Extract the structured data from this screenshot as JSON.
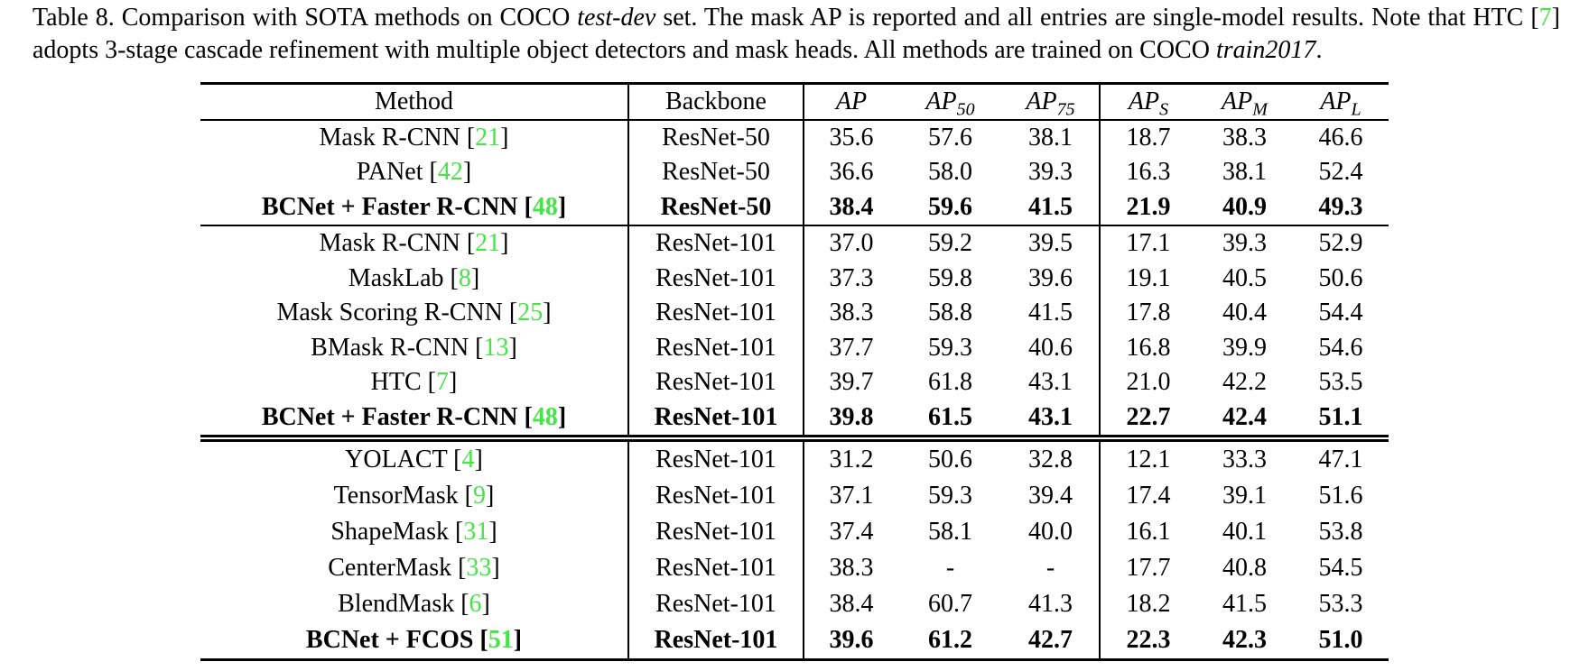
{
  "colors": {
    "citation_green": "#46e546",
    "text": "#000000",
    "background": "#ffffff"
  },
  "caption": {
    "segments": [
      {
        "text": "Table 8. Comparison with SOTA methods on COCO ",
        "style": "normal"
      },
      {
        "text": "test-dev",
        "style": "italic"
      },
      {
        "text": " set.  The mask AP is reported and all entries are single-model results. Note that HTC [",
        "style": "normal"
      },
      {
        "text": "7",
        "style": "cite"
      },
      {
        "text": "] adopts 3-stage cascade refinement with multiple object detectors and mask heads. All methods are trained on COCO ",
        "style": "normal"
      },
      {
        "text": "train2017",
        "style": "italic"
      },
      {
        "text": ".",
        "style": "normal"
      }
    ]
  },
  "table": {
    "columns": [
      {
        "label": "Method",
        "math": false
      },
      {
        "label": "Backbone",
        "math": false
      },
      {
        "label": "AP",
        "sub": "",
        "math": true
      },
      {
        "label": "AP",
        "sub": "50",
        "math": true
      },
      {
        "label": "AP",
        "sub": "75",
        "math": true
      },
      {
        "label": "AP",
        "sub": "S",
        "math": true
      },
      {
        "label": "AP",
        "sub": "M",
        "math": true
      },
      {
        "label": "AP",
        "sub": "L",
        "math": true
      }
    ],
    "groups": [
      {
        "separator": "none",
        "rows": [
          {
            "method": "Mask R-CNN",
            "cite": "21",
            "bold": false,
            "backbone": "ResNet-50",
            "values": [
              "35.6",
              "57.6",
              "38.1",
              "18.7",
              "38.3",
              "46.6"
            ],
            "bold_values": [
              0,
              0,
              0,
              0,
              0,
              0
            ]
          },
          {
            "method": "PANet",
            "cite": "42",
            "bold": false,
            "backbone": "ResNet-50",
            "values": [
              "36.6",
              "58.0",
              "39.3",
              "16.3",
              "38.1",
              "52.4"
            ],
            "bold_values": [
              0,
              0,
              0,
              0,
              0,
              1
            ]
          },
          {
            "method": "BCNet + Faster R-CNN",
            "cite": "48",
            "bold": true,
            "backbone": "ResNet-50",
            "values": [
              "38.4",
              "59.6",
              "41.5",
              "21.9",
              "40.9",
              "49.3"
            ],
            "bold_values": [
              1,
              1,
              1,
              1,
              1,
              0
            ]
          }
        ]
      },
      {
        "separator": "single",
        "rows": [
          {
            "method": "Mask R-CNN",
            "cite": "21",
            "bold": false,
            "backbone": "ResNet-101",
            "values": [
              "37.0",
              "59.2",
              "39.5",
              "17.1",
              "39.3",
              "52.9"
            ],
            "bold_values": [
              0,
              0,
              0,
              0,
              0,
              0
            ]
          },
          {
            "method": "MaskLab",
            "cite": "8",
            "bold": false,
            "backbone": "ResNet-101",
            "values": [
              "37.3",
              "59.8",
              "39.6",
              "19.1",
              "40.5",
              "50.6"
            ],
            "bold_values": [
              0,
              0,
              0,
              0,
              0,
              0
            ]
          },
          {
            "method": "Mask Scoring R-CNN",
            "cite": "25",
            "bold": false,
            "backbone": "ResNet-101",
            "values": [
              "38.3",
              "58.8",
              "41.5",
              "17.8",
              "40.4",
              "54.4"
            ],
            "bold_values": [
              0,
              0,
              0,
              0,
              0,
              0
            ]
          },
          {
            "method": "BMask R-CNN",
            "cite": "13",
            "bold": false,
            "backbone": "ResNet-101",
            "values": [
              "37.7",
              "59.3",
              "40.6",
              "16.8",
              "39.9",
              "54.6"
            ],
            "bold_values": [
              0,
              0,
              0,
              0,
              0,
              1
            ]
          },
          {
            "method": "HTC",
            "cite": "7",
            "bold": false,
            "backbone": "ResNet-101",
            "values": [
              "39.7",
              "61.8",
              "43.1",
              "21.0",
              "42.2",
              "53.5"
            ],
            "bold_values": [
              0,
              1,
              0,
              0,
              0,
              0
            ]
          },
          {
            "method": "BCNet + Faster R-CNN",
            "cite": "48",
            "bold": true,
            "backbone": "ResNet-101",
            "values": [
              "39.8",
              "61.5",
              "43.1",
              "22.7",
              "42.4",
              "51.1"
            ],
            "bold_values": [
              1,
              0,
              1,
              1,
              1,
              0
            ]
          }
        ]
      },
      {
        "separator": "double",
        "rows": [
          {
            "method": "YOLACT",
            "cite": "4",
            "bold": false,
            "backbone": "ResNet-101",
            "values": [
              "31.2",
              "50.6",
              "32.8",
              "12.1",
              "33.3",
              "47.1"
            ],
            "bold_values": [
              0,
              0,
              0,
              0,
              0,
              0
            ]
          },
          {
            "method": "TensorMask",
            "cite": "9",
            "bold": false,
            "backbone": "ResNet-101",
            "values": [
              "37.1",
              "59.3",
              "39.4",
              "17.4",
              "39.1",
              "51.6"
            ],
            "bold_values": [
              0,
              0,
              0,
              0,
              0,
              0
            ]
          },
          {
            "method": "ShapeMask",
            "cite": "31",
            "bold": false,
            "backbone": "ResNet-101",
            "values": [
              "37.4",
              "58.1",
              "40.0",
              "16.1",
              "40.1",
              "53.8"
            ],
            "bold_values": [
              0,
              0,
              0,
              0,
              0,
              0
            ]
          },
          {
            "method": "CenterMask",
            "cite": "33",
            "bold": false,
            "backbone": "ResNet-101",
            "values": [
              "38.3",
              "-",
              "-",
              "17.7",
              "40.8",
              "54.5"
            ],
            "bold_values": [
              0,
              0,
              0,
              0,
              0,
              1
            ]
          },
          {
            "method": "BlendMask",
            "cite": "6",
            "bold": false,
            "backbone": "ResNet-101",
            "values": [
              "38.4",
              "60.7",
              "41.3",
              "18.2",
              "41.5",
              "53.3"
            ],
            "bold_values": [
              0,
              0,
              0,
              0,
              0,
              0
            ]
          },
          {
            "method": "BCNet + FCOS",
            "cite": "51",
            "bold": true,
            "backbone": "ResNet-101",
            "values": [
              "39.6",
              "61.2",
              "42.7",
              "22.3",
              "42.3",
              "51.0"
            ],
            "bold_values": [
              1,
              1,
              1,
              1,
              1,
              0
            ]
          }
        ]
      }
    ]
  }
}
